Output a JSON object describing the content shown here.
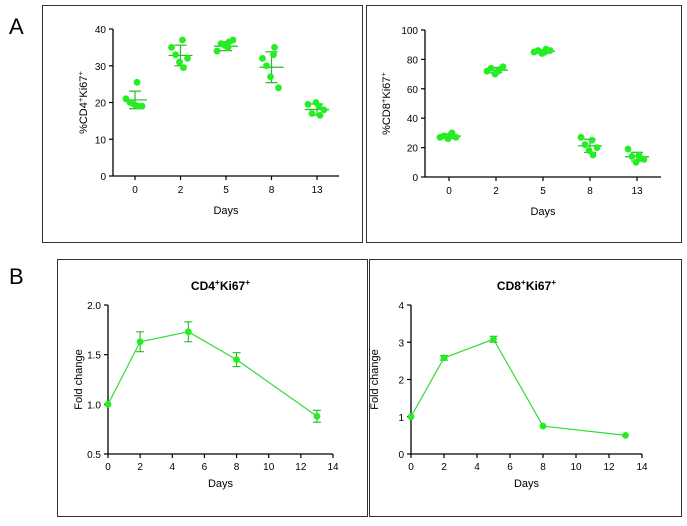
{
  "panel_labels": [
    "A",
    "B"
  ],
  "colors": {
    "marker": "#22ee22",
    "line": "#33dd33",
    "error": "#22bb22",
    "axis": "#000000"
  },
  "chart_data": [
    {
      "type": "scatter",
      "ylabel_base": "%CD4",
      "ylabel_base_sup": "+",
      "ylabel_ki": "Ki67",
      "ylabel_ki_sup": "+",
      "xlabel": "Days",
      "categories": [
        "0",
        "2",
        "5",
        "8",
        "13"
      ],
      "yticks": [
        "0",
        "10",
        "20",
        "30",
        "40"
      ],
      "ylim": [
        0,
        40
      ],
      "points": [
        [
          21,
          20,
          19.5,
          19,
          19,
          25.5
        ],
        [
          35,
          33,
          31,
          29.5,
          32,
          37
        ],
        [
          34,
          36,
          35.5,
          36.5,
          37,
          35
        ],
        [
          32,
          30,
          27,
          35,
          24,
          33
        ],
        [
          19.5,
          17,
          20,
          16.5,
          18,
          19
        ]
      ],
      "mean": [
        20.7,
        32.8,
        35.3,
        29.6,
        18.1
      ],
      "sd": [
        2.4,
        2.8,
        1.2,
        4.2,
        1.5
      ]
    },
    {
      "type": "scatter",
      "ylabel_base": "%CD8",
      "ylabel_base_sup": "+",
      "ylabel_ki": "Ki67",
      "ylabel_ki_sup": "+",
      "xlabel": "Days",
      "categories": [
        "0",
        "2",
        "5",
        "8",
        "13"
      ],
      "yticks": [
        "0",
        "20",
        "40",
        "60",
        "80",
        "100"
      ],
      "ylim": [
        0,
        100
      ],
      "points": [
        [
          27,
          28,
          26,
          30,
          27,
          29
        ],
        [
          72,
          74,
          70,
          73,
          75,
          72
        ],
        [
          85,
          86,
          84,
          87,
          86,
          85
        ],
        [
          27,
          22,
          18,
          15,
          20,
          25
        ],
        [
          19,
          14,
          10,
          13,
          12,
          15
        ]
      ],
      "mean": [
        27.8,
        72.7,
        85.5,
        21.2,
        13.8
      ],
      "sd": [
        1.5,
        1.8,
        1.0,
        4.5,
        3.0
      ]
    },
    {
      "type": "line",
      "title": "CD4",
      "title_sup": "+",
      "title_ki": "Ki67",
      "title_ki_sup": "+",
      "ylabel": "Fold change",
      "xlabel": "Days",
      "xticks": [
        "0",
        "2",
        "4",
        "6",
        "8",
        "10",
        "12",
        "14"
      ],
      "yticks": [
        "0.5",
        "1.0",
        "1.5",
        "2.0"
      ],
      "xlim": [
        0,
        14
      ],
      "ylim": [
        0.5,
        2.0
      ],
      "x": [
        0,
        2,
        5,
        8,
        13
      ],
      "y": [
        1.0,
        1.63,
        1.73,
        1.45,
        0.88
      ],
      "err": [
        0.0,
        0.1,
        0.1,
        0.07,
        0.06
      ]
    },
    {
      "type": "line",
      "title": "CD8",
      "title_sup": "+",
      "title_ki": "Ki67",
      "title_ki_sup": "+",
      "ylabel": "Fold change",
      "xlabel": "Days",
      "xticks": [
        "0",
        "2",
        "4",
        "6",
        "8",
        "10",
        "12",
        "14"
      ],
      "yticks": [
        "0",
        "1",
        "2",
        "3",
        "4"
      ],
      "xlim": [
        0,
        14
      ],
      "ylim": [
        0,
        4
      ],
      "x": [
        0,
        2,
        5,
        8,
        13
      ],
      "y": [
        1.0,
        2.58,
        3.08,
        0.75,
        0.5
      ],
      "err": [
        0.0,
        0.06,
        0.08,
        0.0,
        0.0
      ]
    }
  ]
}
